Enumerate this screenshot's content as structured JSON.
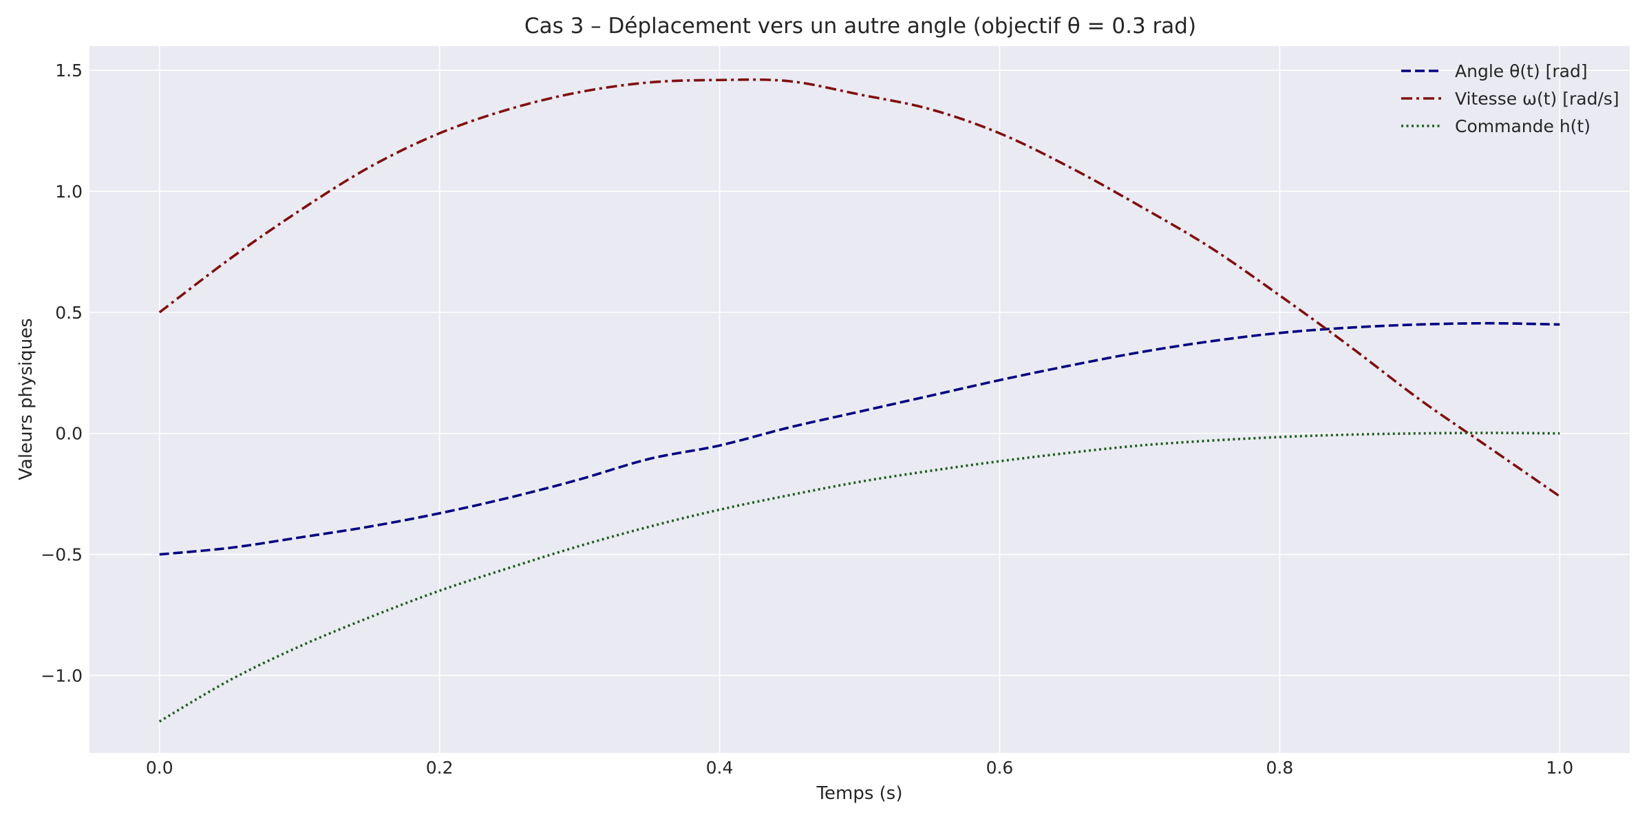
{
  "chart_data": {
    "type": "line",
    "title": "Cas 3 – Déplacement vers un autre angle (objectif θ = 0.3 rad)",
    "xlabel": "Temps (s)",
    "ylabel": "Valeurs physiques",
    "xlim": [
      -0.05,
      1.05
    ],
    "ylim": [
      -1.32,
      1.6
    ],
    "xticks": [
      0.0,
      0.2,
      0.4,
      0.6,
      0.8,
      1.0
    ],
    "xtick_labels": [
      "0.0",
      "0.2",
      "0.4",
      "0.6",
      "0.8",
      "1.0"
    ],
    "yticks": [
      -1.0,
      -0.5,
      0.0,
      0.5,
      1.0,
      1.5
    ],
    "ytick_labels": [
      "−1.0",
      "−0.5",
      "0.0",
      "0.5",
      "1.0",
      "1.5"
    ],
    "grid": true,
    "legend_position": "top-right",
    "x": [
      0.0,
      0.05,
      0.1,
      0.15,
      0.2,
      0.25,
      0.3,
      0.35,
      0.4,
      0.45,
      0.5,
      0.55,
      0.6,
      0.65,
      0.7,
      0.75,
      0.8,
      0.85,
      0.9,
      0.95,
      1.0
    ],
    "series": [
      {
        "name": "Angle θ(t) [rad]",
        "color": "#000080",
        "dash": "dashed",
        "values": [
          -0.5,
          -0.473,
          -0.43,
          -0.385,
          -0.33,
          -0.265,
          -0.19,
          -0.105,
          -0.05,
          0.025,
          0.09,
          0.155,
          0.22,
          0.28,
          0.335,
          0.38,
          0.415,
          0.437,
          0.45,
          0.455,
          0.45
        ]
      },
      {
        "name": "Vitesse ω(t) [rad/s]",
        "color": "#7f0f0f",
        "dash": "dashdot",
        "values": [
          0.5,
          0.72,
          0.92,
          1.1,
          1.24,
          1.34,
          1.41,
          1.45,
          1.46,
          1.455,
          1.4,
          1.34,
          1.24,
          1.1,
          0.94,
          0.77,
          0.57,
          0.36,
          0.14,
          -0.06,
          -0.26
        ]
      },
      {
        "name": "Commande h(t)",
        "color": "#1f5c1f",
        "dash": "dotted",
        "values": [
          -1.19,
          -1.02,
          -0.88,
          -0.76,
          -0.65,
          -0.555,
          -0.465,
          -0.385,
          -0.315,
          -0.255,
          -0.2,
          -0.155,
          -0.115,
          -0.08,
          -0.05,
          -0.03,
          -0.015,
          -0.005,
          0.0,
          0.002,
          0.0
        ]
      }
    ]
  }
}
